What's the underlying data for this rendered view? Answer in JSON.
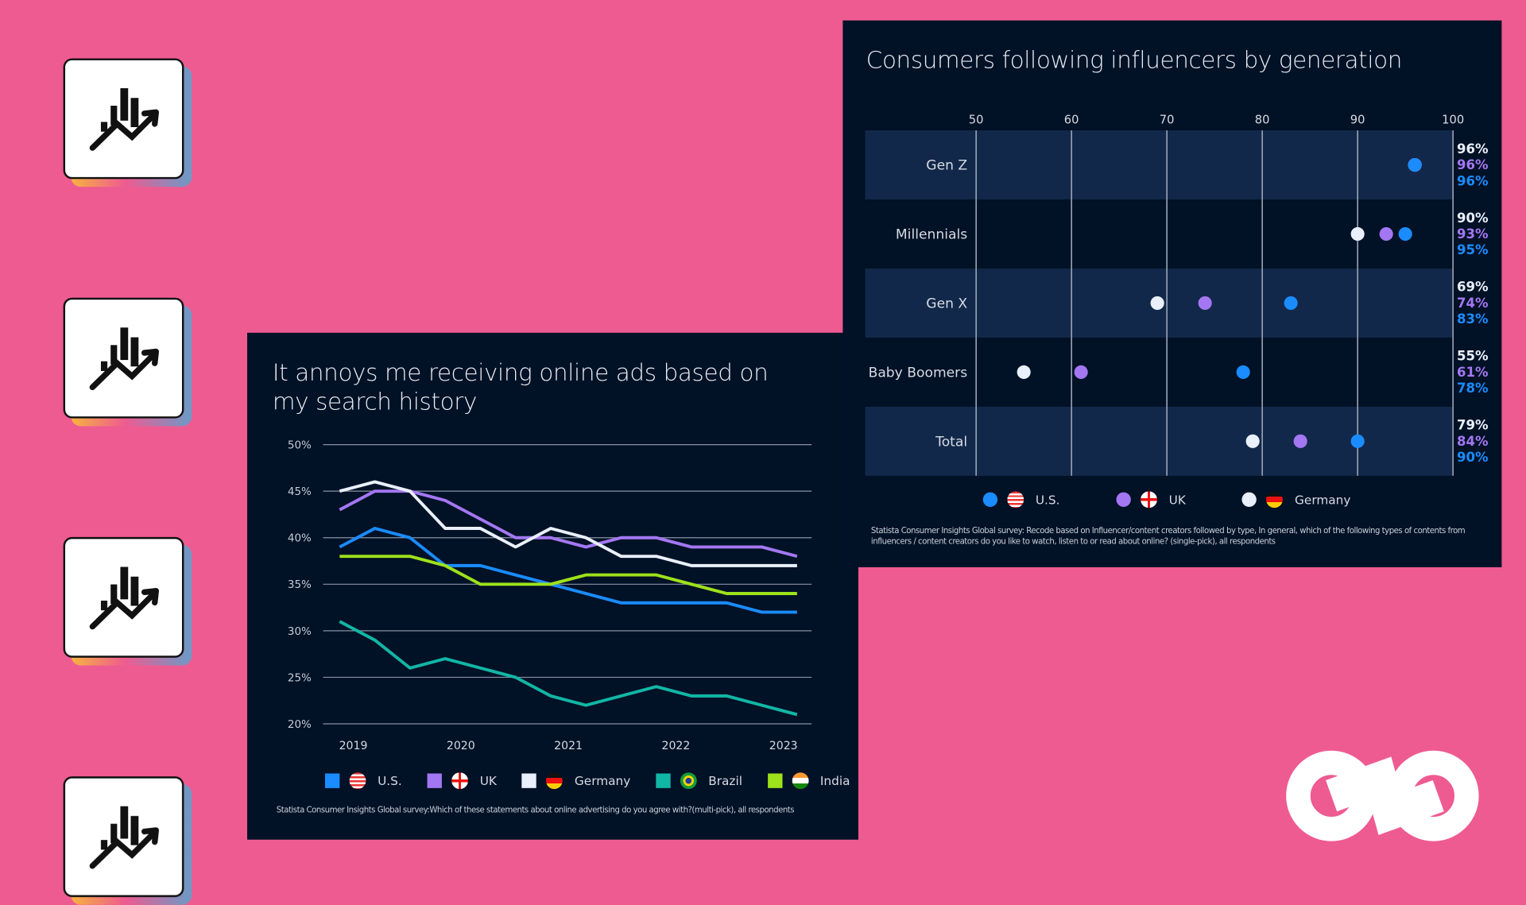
{
  "colors": {
    "background": "#ee5b91",
    "panel": "#011126",
    "us": "#1a8cff",
    "uk": "#a477f2",
    "germany": "#e9f0fb",
    "brazil": "#12b6a5",
    "india": "#9ee21b"
  },
  "icons": [
    "chart-growth-icon",
    "chart-growth-icon",
    "chart-growth-icon",
    "chart-growth-icon"
  ],
  "logo": "infinity-logo",
  "chart_data": [
    {
      "type": "line",
      "title": "It annoys me receiving online ads based on my search history",
      "y_ticks": [
        "50%",
        "45%",
        "40%",
        "35%",
        "30%",
        "25%",
        "20%"
      ],
      "ylim": [
        20,
        50
      ],
      "x_ticks": [
        "2019",
        "2020",
        "2021",
        "2022",
        "2023"
      ],
      "grid": "horizontal",
      "legend": "bottom",
      "series": [
        {
          "name": "U.S.",
          "color": "#1a8cff",
          "flag": "us-flag-icon",
          "values": [
            39,
            41,
            40,
            37,
            37,
            36,
            35,
            34,
            33,
            33,
            33,
            33,
            32,
            32
          ]
        },
        {
          "name": "UK",
          "color": "#a477f2",
          "flag": "uk-flag-icon",
          "values": [
            43,
            45,
            45,
            44,
            42,
            40,
            40,
            39,
            40,
            40,
            39,
            39,
            39,
            38
          ]
        },
        {
          "name": "Germany",
          "color": "#e9f0fb",
          "flag": "germany-flag-icon",
          "values": [
            45,
            46,
            45,
            41,
            41,
            39,
            41,
            40,
            38,
            38,
            37,
            37,
            37,
            37
          ]
        },
        {
          "name": "Brazil",
          "color": "#12b6a5",
          "flag": "brazil-flag-icon",
          "values": [
            31,
            29,
            26,
            27,
            26,
            25,
            23,
            22,
            23,
            24,
            23,
            23,
            22,
            21
          ]
        },
        {
          "name": "India",
          "color": "#9ee21b",
          "flag": "india-flag-icon",
          "values": [
            38,
            38,
            38,
            37,
            35,
            35,
            35,
            36,
            36,
            36,
            35,
            34,
            34,
            34
          ]
        }
      ],
      "footnote": "Statista Consumer Insights Global survey:Which of these statements about online advertising do you agree with?(multi-pick), all respondents"
    },
    {
      "type": "scatter",
      "title": "Consumers following influencers by generation",
      "x_ticks": [
        "50",
        "60",
        "70",
        "80",
        "90",
        "100"
      ],
      "xlim": [
        50,
        100
      ],
      "grid": "vertical",
      "legend": "bottom",
      "categories": [
        "Gen Z",
        "Millennials",
        "Gen X",
        "Baby Boomers",
        "Total"
      ],
      "series": [
        {
          "name": "Germany",
          "color": "#e9f0fb",
          "flag": "germany-flag-icon",
          "values": [
            96,
            90,
            69,
            55,
            79
          ],
          "labels": [
            "96%",
            "90%",
            "69%",
            "55%",
            "79%"
          ]
        },
        {
          "name": "UK",
          "color": "#a477f2",
          "flag": "uk-flag-icon",
          "values": [
            96,
            93,
            74,
            61,
            84
          ],
          "labels": [
            "96%",
            "93%",
            "74%",
            "61%",
            "84%"
          ]
        },
        {
          "name": "U.S.",
          "color": "#1a8cff",
          "flag": "us-flag-icon",
          "values": [
            96,
            95,
            83,
            78,
            90
          ],
          "labels": [
            "96%",
            "95%",
            "83%",
            "78%",
            "90%"
          ]
        }
      ],
      "legend_order": [
        "U.S.",
        "UK",
        "Germany"
      ],
      "footnote": "Statista Consumer Insights Global survey: Recode based on Influencer/content creators followed by type, In general, which of the following types of contents from influencers / content creators do you like to watch, listen to or read about online? (single-pick), all respondents"
    }
  ]
}
